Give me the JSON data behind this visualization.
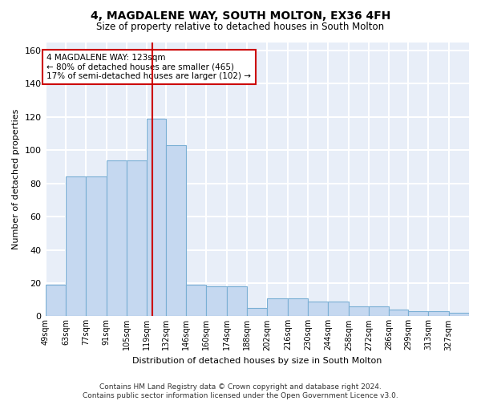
{
  "title": "4, MAGDALENE WAY, SOUTH MOLTON, EX36 4FH",
  "subtitle": "Size of property relative to detached houses in South Molton",
  "xlabel": "Distribution of detached houses by size in South Molton",
  "ylabel": "Number of detached properties",
  "categories": [
    "49sqm",
    "63sqm",
    "77sqm",
    "91sqm",
    "105sqm",
    "119sqm",
    "132sqm",
    "146sqm",
    "160sqm",
    "174sqm",
    "188sqm",
    "202sqm",
    "216sqm",
    "230sqm",
    "244sqm",
    "258sqm",
    "272sqm",
    "286sqm",
    "299sqm",
    "313sqm",
    "327sqm"
  ],
  "bar_color": "#c5d8f0",
  "bar_edge_color": "#7aafd4",
  "vline_x": 123,
  "vline_color": "#cc0000",
  "annotation_text": "4 MAGDALENE WAY: 123sqm\n← 80% of detached houses are smaller (465)\n17% of semi-detached houses are larger (102) →",
  "annotation_box_color": "#ffffff",
  "annotation_box_edge_color": "#cc0000",
  "ylim": [
    0,
    165
  ],
  "yticks": [
    0,
    20,
    40,
    60,
    80,
    100,
    120,
    140,
    160
  ],
  "footer": "Contains HM Land Registry data © Crown copyright and database right 2024.\nContains public sector information licensed under the Open Government Licence v3.0.",
  "background_color": "#ffffff",
  "plot_bg_color": "#e8eef8",
  "grid_color": "#ffffff",
  "bin_edges": [
    49,
    63,
    77,
    91,
    105,
    119,
    132,
    146,
    160,
    174,
    188,
    202,
    216,
    230,
    244,
    258,
    272,
    286,
    299,
    313,
    327,
    341
  ],
  "hist_values": [
    19,
    84,
    84,
    94,
    94,
    119,
    103,
    19,
    18,
    18,
    5,
    11,
    11,
    9,
    9,
    6,
    6,
    4,
    3,
    3,
    2
  ]
}
